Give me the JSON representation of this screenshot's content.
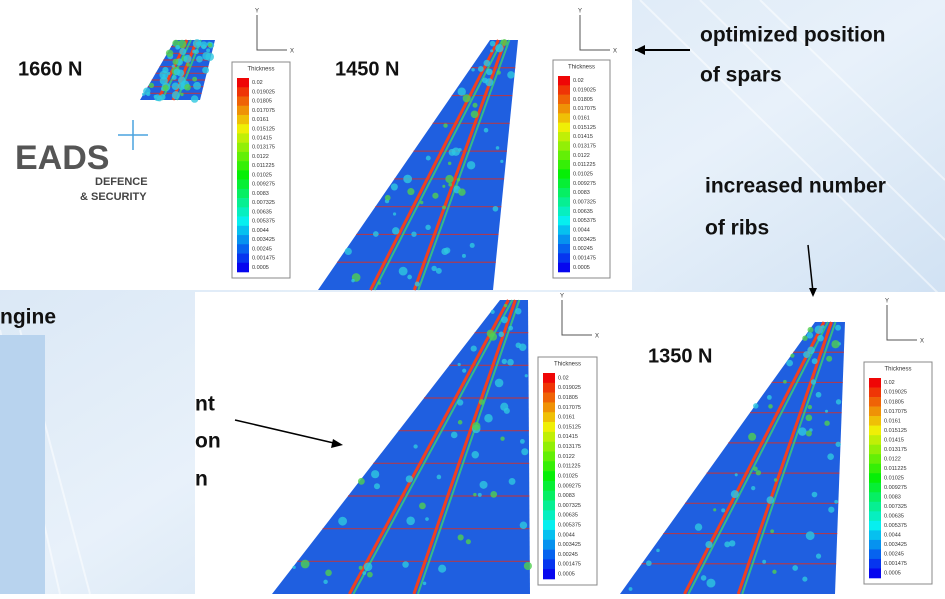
{
  "force_labels": [
    "1660 N",
    "1450 N",
    "1350 N"
  ],
  "legend": {
    "title": "Thickness",
    "values": [
      0.02,
      0.019025,
      0.01805,
      0.017075,
      0.0161,
      0.015125,
      0.01415,
      0.013175,
      0.0122,
      0.011225,
      0.01025,
      0.009275,
      0.0083,
      0.007325,
      0.00635,
      0.005375,
      0.0044,
      0.003425,
      0.00245,
      0.001475,
      0.0005
    ]
  },
  "axis_labels": [
    "Y",
    "X"
  ],
  "callouts": {
    "spars": [
      "optimized position",
      "of spars"
    ],
    "ribs": [
      "increased number",
      "of ribs"
    ],
    "cut_left": [
      "ngine"
    ],
    "cut_middle": [
      "nt",
      "on",
      "n"
    ]
  },
  "logo": {
    "name": "EADS",
    "sub": [
      "DEFENCE",
      "& SECURITY"
    ]
  }
}
